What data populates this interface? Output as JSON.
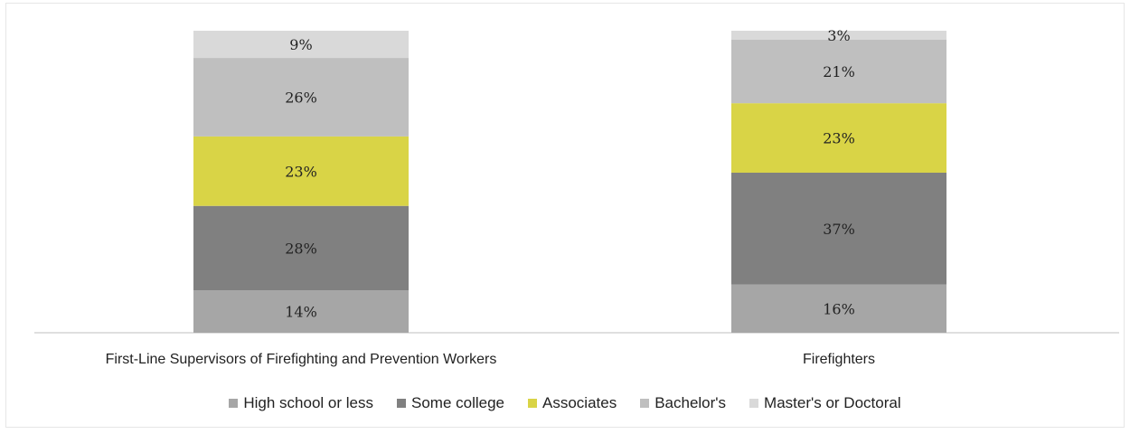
{
  "chart_data": {
    "type": "bar",
    "stacked": true,
    "normalized": true,
    "categories": [
      "First-Line Supervisors of Firefighting and Prevention Workers",
      "Firefighters"
    ],
    "series": [
      {
        "name": "High school or less",
        "color": "#a6a6a6",
        "values": [
          14,
          16
        ]
      },
      {
        "name": "Some college",
        "color": "#808080",
        "values": [
          28,
          37
        ]
      },
      {
        "name": "Associates",
        "color": "#d9d446",
        "values": [
          23,
          23
        ]
      },
      {
        "name": "Bachelor's",
        "color": "#bfbfbf",
        "values": [
          26,
          21
        ]
      },
      {
        "name": "Master's or Doctoral",
        "color": "#d9d9d9",
        "values": [
          9,
          3
        ]
      }
    ],
    "value_suffix": "%",
    "ylim": [
      0,
      100
    ],
    "grid": false,
    "legend_position": "bottom"
  }
}
